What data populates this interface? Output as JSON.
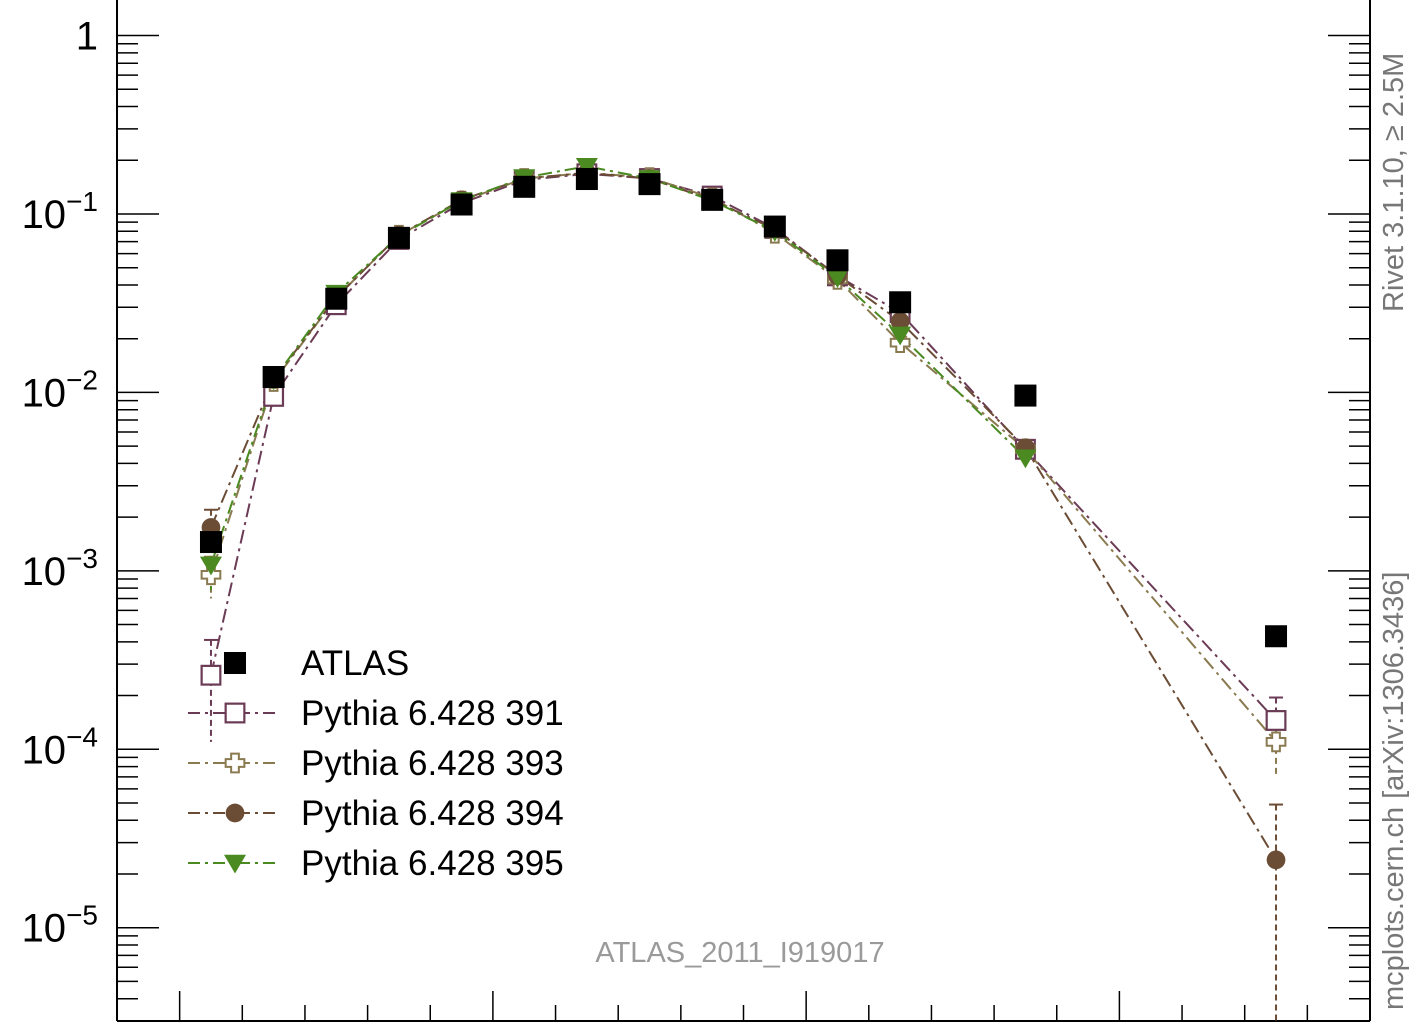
{
  "chart_data": {
    "type": "scatter",
    "yscale": "log",
    "x": [
      0.5,
      1.5,
      2.5,
      3.5,
      4.5,
      5.5,
      6.5,
      7.5,
      8.5,
      9.5,
      10.5,
      11.5,
      13.5,
      17.5
    ],
    "xlim": [
      -1.0,
      19.0
    ],
    "ylim": [
      3e-06,
      1.8
    ],
    "yticks": [
      {
        "value": 1,
        "mantissa": "1",
        "exponent": ""
      },
      {
        "value": 0.1,
        "mantissa": "10",
        "exponent": "−1"
      },
      {
        "value": 0.01,
        "mantissa": "10",
        "exponent": "−2"
      },
      {
        "value": 0.001,
        "mantissa": "10",
        "exponent": "−3"
      },
      {
        "value": 0.0001,
        "mantissa": "10",
        "exponent": "−4"
      },
      {
        "value": 1e-05,
        "mantissa": "10",
        "exponent": "−5"
      }
    ],
    "series": [
      {
        "name": "ATLAS",
        "marker": "square-filled",
        "color": "#000000",
        "line": "none",
        "values": [
          0.00145,
          0.0122,
          0.0335,
          0.0735,
          0.113,
          0.142,
          0.157,
          0.147,
          0.12,
          0.085,
          0.055,
          0.032,
          0.0096,
          0.00043
        ]
      },
      {
        "name": "Pythia 6.428 391",
        "marker": "square-open",
        "color": "#6b3b55",
        "line": "dashdot",
        "values": [
          0.00026,
          0.0095,
          0.031,
          0.072,
          0.115,
          0.155,
          0.168,
          0.158,
          0.126,
          0.083,
          0.045,
          0.028,
          0.0048,
          0.000145
        ],
        "errors": [
          0.00015,
          0.0006,
          0.0015,
          0.003,
          0.004,
          0.005,
          0.005,
          0.005,
          0.004,
          0.003,
          0.0025,
          0.002,
          0.0006,
          5e-05
        ]
      },
      {
        "name": "Pythia 6.428 393",
        "marker": "cross-open",
        "color": "#8a7a50",
        "line": "dashdot",
        "values": [
          0.00095,
          0.0115,
          0.034,
          0.076,
          0.118,
          0.158,
          0.17,
          0.16,
          0.123,
          0.078,
          0.043,
          0.019,
          0.0048,
          0.00011
        ],
        "errors": [
          0.00025,
          0.0008,
          0.0017,
          0.003,
          0.004,
          0.005,
          0.005,
          0.005,
          0.004,
          0.003,
          0.0022,
          0.0015,
          0.0005,
          4e-05
        ]
      },
      {
        "name": "Pythia 6.428 394",
        "marker": "circle-filled",
        "color": "#6b4c35",
        "line": "dashdot",
        "values": [
          0.00175,
          0.0118,
          0.034,
          0.076,
          0.12,
          0.158,
          0.17,
          0.158,
          0.12,
          0.082,
          0.045,
          0.025,
          0.0049,
          2.4e-05
        ],
        "errors": [
          0.00045,
          0.0008,
          0.0017,
          0.003,
          0.004,
          0.005,
          0.005,
          0.005,
          0.004,
          0.003,
          0.0022,
          0.0018,
          0.0005,
          2.5e-05
        ]
      },
      {
        "name": "Pythia 6.428 395",
        "marker": "triangle-down-filled",
        "color": "#4a8a20",
        "line": "dashdot",
        "values": [
          0.00108,
          0.0118,
          0.036,
          0.075,
          0.119,
          0.16,
          0.185,
          0.158,
          0.119,
          0.08,
          0.044,
          0.021,
          0.0043,
          null
        ],
        "errors": [
          0.0003,
          0.0008,
          0.0017,
          0.003,
          0.004,
          0.005,
          0.005,
          0.005,
          0.004,
          0.003,
          0.0022,
          0.0015,
          0.0005,
          null
        ]
      }
    ],
    "legend_position": "bottom-left",
    "annotation": "ATLAS_2011_I919017",
    "side_text_top": "Rivet 3.1.10, ≥ 2.5M",
    "side_text_bottom": "mcplots.cern.ch [arXiv:1306.3436]"
  }
}
